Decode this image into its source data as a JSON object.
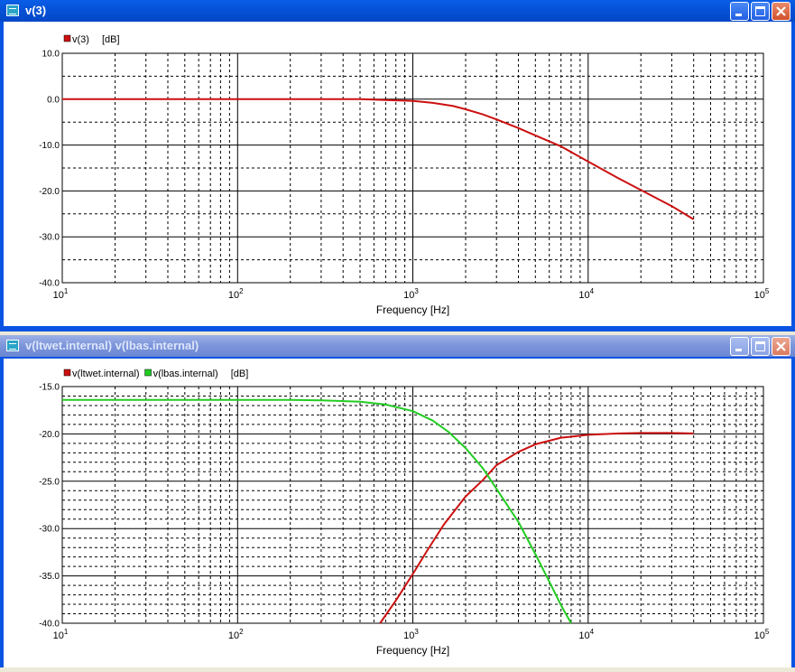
{
  "windows": [
    {
      "title": "v(3)",
      "active": true,
      "legend": {
        "entries": [
          {
            "name": "v(3)",
            "color": "#cc1010"
          }
        ],
        "unit": "[dB]"
      },
      "chart_data": {
        "type": "line",
        "xscale": "log",
        "xlim": [
          10,
          100000
        ],
        "ylim": [
          -40,
          10
        ],
        "xlabel": "Frequency [Hz]",
        "ylabel": "[dB]",
        "x_ticks": [
          "10^1",
          "10^2",
          "10^3",
          "10^4",
          "10^5"
        ],
        "y_ticks": [
          "10.0",
          "0.0",
          "-10.0",
          "-20.0",
          "-30.0",
          "-40.0"
        ],
        "grid": true,
        "legend_placement": "top-left",
        "series": [
          {
            "name": "v(3)",
            "color": "#cc1010",
            "x": [
              10,
              100,
              300,
              500,
              700,
              1000,
              1300,
              1700,
              2000,
              2500,
              3000,
              4000,
              5000,
              7000,
              10000,
              15000,
              20000,
              30000,
              40000
            ],
            "y": [
              0,
              0,
              0,
              0,
              -0.2,
              -0.4,
              -0.8,
              -1.5,
              -2.2,
              -3.3,
              -4.4,
              -6.3,
              -7.9,
              -10.3,
              -13.6,
              -17.3,
              -19.8,
              -23.3,
              -26.2
            ]
          }
        ]
      }
    },
    {
      "title": "v(ltwet.internal) v(lbas.internal)",
      "active": false,
      "legend": {
        "entries": [
          {
            "name": "v(ltwet.internal)",
            "color": "#cc1010"
          },
          {
            "name": "v(lbas.internal)",
            "color": "#22cc22"
          }
        ],
        "unit": "[dB]"
      },
      "chart_data": {
        "type": "line",
        "xscale": "log",
        "xlim": [
          10,
          100000
        ],
        "ylim": [
          -40,
          -15
        ],
        "xlabel": "Frequency [Hz]",
        "ylabel": "[dB]",
        "x_ticks": [
          "10^1",
          "10^2",
          "10^3",
          "10^4",
          "10^5"
        ],
        "y_ticks": [
          "-15.0",
          "-20.0",
          "-25.0",
          "-30.0",
          "-35.0",
          "-40.0"
        ],
        "grid": true,
        "legend_placement": "top-left",
        "series": [
          {
            "name": "v(ltwet.internal)",
            "color": "#cc1010",
            "x": [
              650,
              800,
              1000,
              1200,
              1500,
              2000,
              2500,
              3000,
              4000,
              5000,
              7000,
              10000,
              15000,
              20000,
              30000,
              40000
            ],
            "y": [
              -40,
              -37.6,
              -34.8,
              -32.4,
              -29.6,
              -26.6,
              -24.9,
              -23.3,
              -21.9,
              -21.1,
              -20.4,
              -20.1,
              -19.95,
              -19.9,
              -19.9,
              -19.95
            ]
          },
          {
            "name": "v(lbas.internal)",
            "color": "#22cc22",
            "x": [
              10,
              100,
              200,
              300,
              500,
              700,
              1000,
              1300,
              1600,
              2000,
              2500,
              3000,
              4000,
              5000,
              6000,
              7000,
              8000
            ],
            "y": [
              -16.4,
              -16.4,
              -16.4,
              -16.45,
              -16.6,
              -16.9,
              -17.6,
              -18.6,
              -19.8,
              -21.5,
              -23.6,
              -25.8,
              -29.3,
              -32.7,
              -35.6,
              -38.1,
              -40
            ]
          }
        ]
      }
    }
  ]
}
